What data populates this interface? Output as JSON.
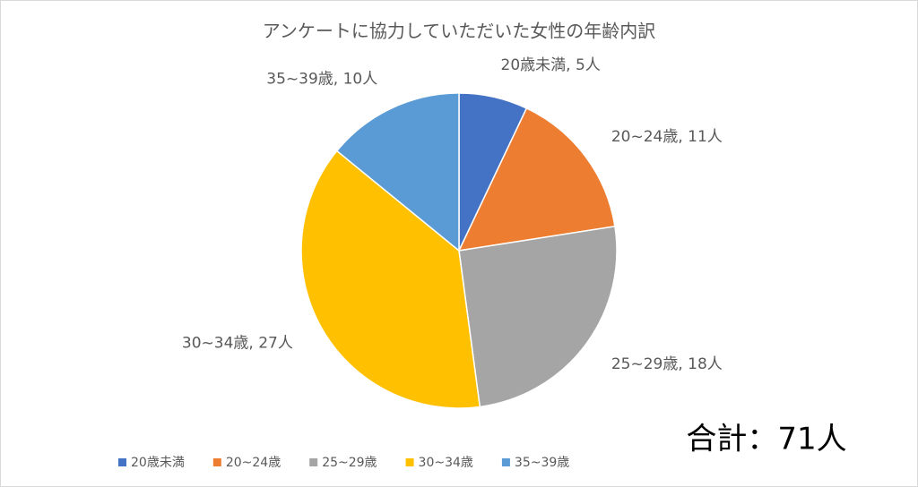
{
  "chart_data": {
    "type": "pie",
    "title": "アンケートに協力していただいた女性の年齢内訳",
    "categories": [
      "20歳未満",
      "20~24歳",
      "25~29歳",
      "30~34歳",
      "35~39歳"
    ],
    "values": [
      5,
      11,
      18,
      27,
      10
    ],
    "value_labels": [
      "20歳未満, 5人",
      "20~24歳, 11人",
      "25~29歳, 18人",
      "30~34歳, 27人",
      "35~39歳, 10人"
    ],
    "colors": [
      "#4472c4",
      "#ed7d31",
      "#a5a5a5",
      "#ffc000",
      "#5b9bd5"
    ],
    "legend": "bottom",
    "annotation": "合計：71人"
  }
}
